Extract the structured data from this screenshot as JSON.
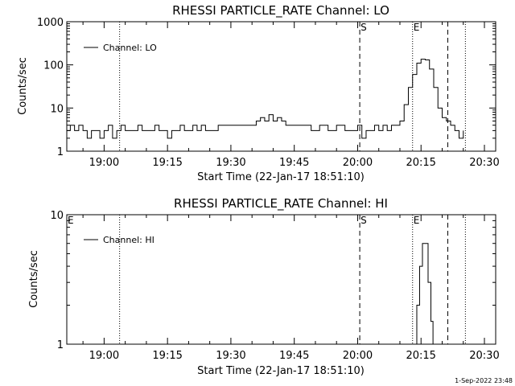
{
  "footer": "1-Sep-2022 23:48",
  "chart_data": [
    {
      "type": "line",
      "title": "RHESSI PARTICLE_RATE Channel: LO",
      "xlabel": "Start Time (22-Jan-17 18:51:10)",
      "ylabel": "Counts/sec",
      "yscale": "log",
      "ylim": [
        1,
        1000
      ],
      "xlim": [
        "18:51:10",
        "20:32:40"
      ],
      "x_ticks": [
        "19:00",
        "19:15",
        "19:30",
        "19:45",
        "20:00",
        "20:15",
        "20:30"
      ],
      "y_ticks": [
        "1",
        "10",
        "100",
        "1000"
      ],
      "legend": {
        "label": "Channel: LO",
        "position": "top-left"
      },
      "markers": [
        {
          "time": "20:00:30",
          "label": "S",
          "style": "dashed"
        },
        {
          "time": "20:13:00",
          "label": "E",
          "style": "dotted"
        },
        {
          "time": "20:21:20",
          "label": "",
          "style": "dashed"
        },
        {
          "time": "20:25:30",
          "label": "",
          "style": "dotted"
        },
        {
          "time": "19:03:40",
          "label": "",
          "style": "dotted"
        }
      ],
      "series": [
        {
          "name": "Channel: LO",
          "x": [
            "18:51:10",
            "18:52:00",
            "18:53:00",
            "18:54:00",
            "18:55:00",
            "18:56:00",
            "18:57:00",
            "18:58:00",
            "18:59:00",
            "19:00:00",
            "19:01:00",
            "19:02:00",
            "19:03:00",
            "19:04:00",
            "19:05:00",
            "19:06:00",
            "19:07:00",
            "19:08:00",
            "19:09:00",
            "19:10:00",
            "19:11:00",
            "19:12:00",
            "19:13:00",
            "19:14:00",
            "19:15:00",
            "19:16:00",
            "19:17:00",
            "19:18:00",
            "19:19:00",
            "19:20:00",
            "19:21:00",
            "19:22:00",
            "19:23:00",
            "19:24:00",
            "19:25:00",
            "19:27:00",
            "19:30:00",
            "19:33:00",
            "19:35:00",
            "19:36:00",
            "19:37:00",
            "19:38:00",
            "19:39:00",
            "19:40:00",
            "19:41:00",
            "19:42:00",
            "19:43:00",
            "19:45:00",
            "19:47:00",
            "19:49:00",
            "19:51:00",
            "19:53:00",
            "19:55:00",
            "19:57:00",
            "19:59:00",
            "20:00:00",
            "20:01:00",
            "20:02:00",
            "20:03:00",
            "20:04:00",
            "20:05:00",
            "20:06:00",
            "20:07:00",
            "20:08:00",
            "20:09:00",
            "20:10:00",
            "20:11:00",
            "20:12:00",
            "20:13:00",
            "20:14:00",
            "20:15:00",
            "20:16:00",
            "20:17:00",
            "20:18:00",
            "20:19:00",
            "20:20:00",
            "20:21:00",
            "20:22:00",
            "20:23:00",
            "20:24:00",
            "20:25:00"
          ],
          "y": [
            3,
            4,
            3,
            4,
            3,
            2,
            3,
            3,
            2,
            3,
            4,
            2,
            3,
            4,
            3,
            3,
            3,
            4,
            3,
            3,
            3,
            4,
            3,
            3,
            2,
            3,
            3,
            4,
            3,
            3,
            4,
            3,
            4,
            3,
            3,
            4,
            4,
            4,
            4,
            5,
            6,
            5,
            7,
            5,
            6,
            5,
            4,
            4,
            4,
            3,
            4,
            3,
            4,
            3,
            3,
            4,
            2,
            3,
            3,
            4,
            3,
            4,
            3,
            4,
            4,
            5,
            12,
            30,
            60,
            110,
            135,
            130,
            80,
            30,
            10,
            6,
            5,
            4,
            3,
            2,
            3
          ]
        }
      ]
    },
    {
      "type": "line",
      "title": "RHESSI PARTICLE_RATE Channel: HI",
      "xlabel": "Start Time (22-Jan-17 18:51:10)",
      "ylabel": "Counts/sec",
      "yscale": "log",
      "ylim": [
        1,
        10
      ],
      "xlim": [
        "18:51:10",
        "20:32:40"
      ],
      "x_ticks": [
        "19:00",
        "19:15",
        "19:30",
        "19:45",
        "20:00",
        "20:15",
        "20:30"
      ],
      "y_ticks": [
        "1",
        "10"
      ],
      "legend": {
        "label": "Channel: HI",
        "position": "top-left"
      },
      "markers": [
        {
          "time": "18:51:10",
          "label": "E",
          "style": "none"
        },
        {
          "time": "20:00:30",
          "label": "S",
          "style": "dashed"
        },
        {
          "time": "20:13:00",
          "label": "E",
          "style": "dotted"
        },
        {
          "time": "20:21:20",
          "label": "",
          "style": "dashed"
        },
        {
          "time": "20:25:30",
          "label": "",
          "style": "dotted"
        },
        {
          "time": "19:03:40",
          "label": "",
          "style": "dotted"
        }
      ],
      "series": [
        {
          "name": "Channel: HI",
          "x": [
            "20:13:20",
            "20:14:00",
            "20:14:40",
            "20:15:20",
            "20:16:00",
            "20:16:40",
            "20:17:20",
            "20:17:50"
          ],
          "y": [
            1,
            2,
            4,
            6,
            6,
            3,
            1.5,
            1
          ]
        }
      ]
    }
  ]
}
